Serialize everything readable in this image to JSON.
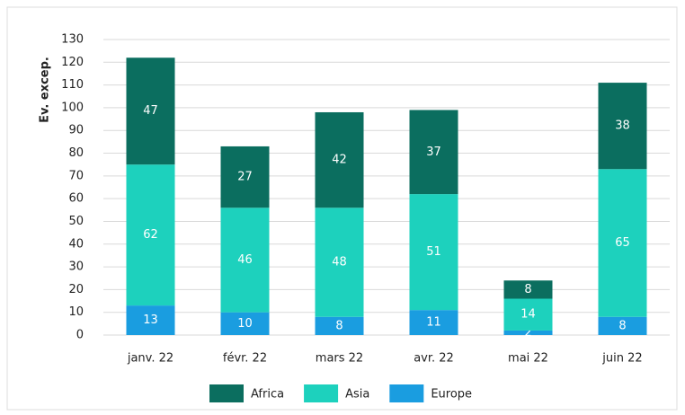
{
  "chart_data": {
    "type": "stacked_bar",
    "y_label": "Ev. excep.",
    "categories": [
      "janv. 22",
      "févr. 22",
      "mars 22",
      "avr. 22",
      "mai 22",
      "juin 22"
    ],
    "series": [
      {
        "name": "Africa",
        "color": "#0b6e5f",
        "values": [
          47,
          27,
          42,
          37,
          8,
          38
        ]
      },
      {
        "name": "Asia",
        "color": "#1dd1bd",
        "values": [
          62,
          46,
          48,
          51,
          14,
          65
        ]
      },
      {
        "name": "Europe",
        "color": "#1a9de0",
        "values": [
          13,
          10,
          8,
          11,
          2,
          8
        ]
      }
    ],
    "stack_order": "bottom_up_reversed",
    "ylim": [
      0,
      130
    ],
    "yticks": [
      0,
      10,
      20,
      30,
      40,
      50,
      60,
      70,
      80,
      90,
      100,
      110,
      120,
      130
    ],
    "grid": true,
    "legend": "bottom"
  }
}
